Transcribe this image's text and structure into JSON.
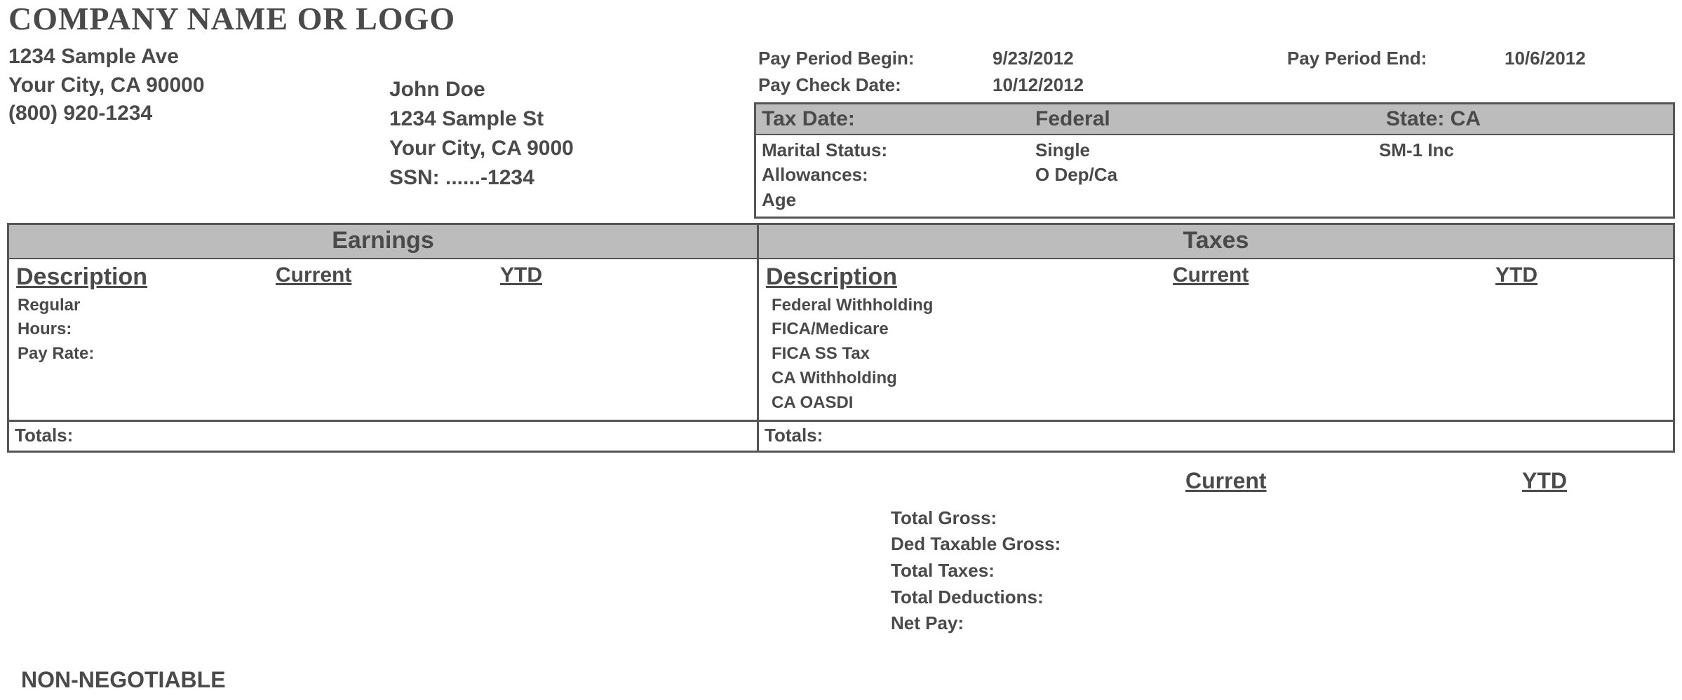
{
  "company": {
    "name": "COMPANY NAME OR LOGO",
    "street": "1234 Sample Ave",
    "city_line": "Your City, CA 90000",
    "phone": "(800) 920-1234"
  },
  "employee": {
    "name": "John Doe",
    "street": "1234 Sample St",
    "city_line": "Your City, CA 9000",
    "ssn_line": "SSN: ......-1234"
  },
  "pay_period": {
    "begin_label": "Pay Period Begin:",
    "begin_value": "9/23/2012",
    "end_label": "Pay Period End:",
    "end_value": "10/6/2012",
    "check_label": "Pay Check Date:",
    "check_value": "10/12/2012"
  },
  "tax_meta": {
    "header": {
      "col1": "Tax Date:",
      "col2": "Federal",
      "col3": "State: CA"
    },
    "rows": [
      {
        "col1": "Marital Status:",
        "col2": "Single",
        "col3": "SM-1 Inc"
      },
      {
        "col1": "Allowances:",
        "col2": "O Dep/Ca",
        "col3": ""
      },
      {
        "col1": "Age",
        "col2": "",
        "col3": ""
      }
    ]
  },
  "earnings": {
    "title": "Earnings",
    "col_desc": "Description",
    "col_curr": "Current",
    "col_ytd": "YTD",
    "lines": [
      "Regular",
      "Hours:",
      "Pay Rate:"
    ],
    "totals_label": "Totals:"
  },
  "taxes": {
    "title": "Taxes",
    "col_desc": "Description",
    "col_curr": "Current",
    "col_ytd": "YTD",
    "lines": [
      "Federal Withholding",
      "FICA/Medicare",
      "FICA SS Tax",
      "CA Withholding",
      "CA OASDI"
    ],
    "totals_label": "Totals:"
  },
  "summary": {
    "col_curr": "Current",
    "col_ytd": "YTD",
    "rows": [
      "Total Gross:",
      "Ded Taxable Gross:",
      "Total Taxes:",
      "Total Deductions:",
      "Net Pay:"
    ]
  },
  "footer": {
    "non_negotiable": "NON-NEGOTIABLE"
  },
  "style": {
    "header_bg": "#bcbcbc",
    "border_color": "#555555",
    "text_color": "#4a4a4a",
    "page_bg": "#ffffff"
  }
}
